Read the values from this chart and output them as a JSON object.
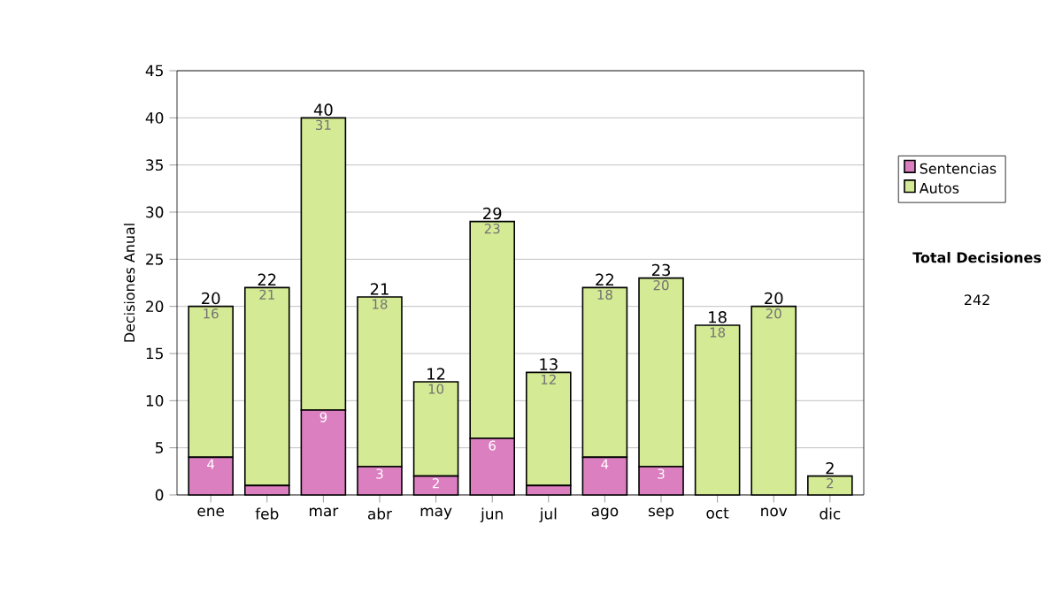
{
  "chart_data": {
    "type": "bar",
    "stacked": true,
    "ylabel": "Decisiones Anual",
    "categories": [
      "ene",
      "feb",
      "mar",
      "abr",
      "may",
      "jun",
      "jul",
      "ago",
      "sep",
      "oct",
      "nov",
      "dic"
    ],
    "series": [
      {
        "name": "Sentencias",
        "color": "#dc7fc0",
        "values": [
          4,
          1,
          9,
          3,
          2,
          6,
          1,
          4,
          3,
          0,
          0,
          0
        ],
        "value_labels": [
          "4",
          null,
          "9",
          "3",
          "2",
          "6",
          null,
          "4",
          "3",
          null,
          null,
          null
        ]
      },
      {
        "name": "Autos",
        "color": "#d5ea94",
        "values": [
          16,
          21,
          31,
          18,
          10,
          23,
          12,
          18,
          20,
          18,
          20,
          2
        ],
        "value_labels": [
          "16",
          "21",
          "31",
          "18",
          "10",
          "23",
          "12",
          "18",
          "20",
          "18",
          "20",
          "2"
        ]
      }
    ],
    "totals": [
      "20",
      "22",
      "40",
      "21",
      "12",
      "29",
      "13",
      "22",
      "23",
      "18",
      "20",
      "2"
    ],
    "ylim": [
      0,
      45
    ],
    "yticks": [
      0,
      5,
      10,
      15,
      20,
      25,
      30,
      35,
      40,
      45
    ],
    "grid": "y",
    "legend": "right",
    "annotations": [
      "Total Decisiones",
      "242"
    ]
  }
}
